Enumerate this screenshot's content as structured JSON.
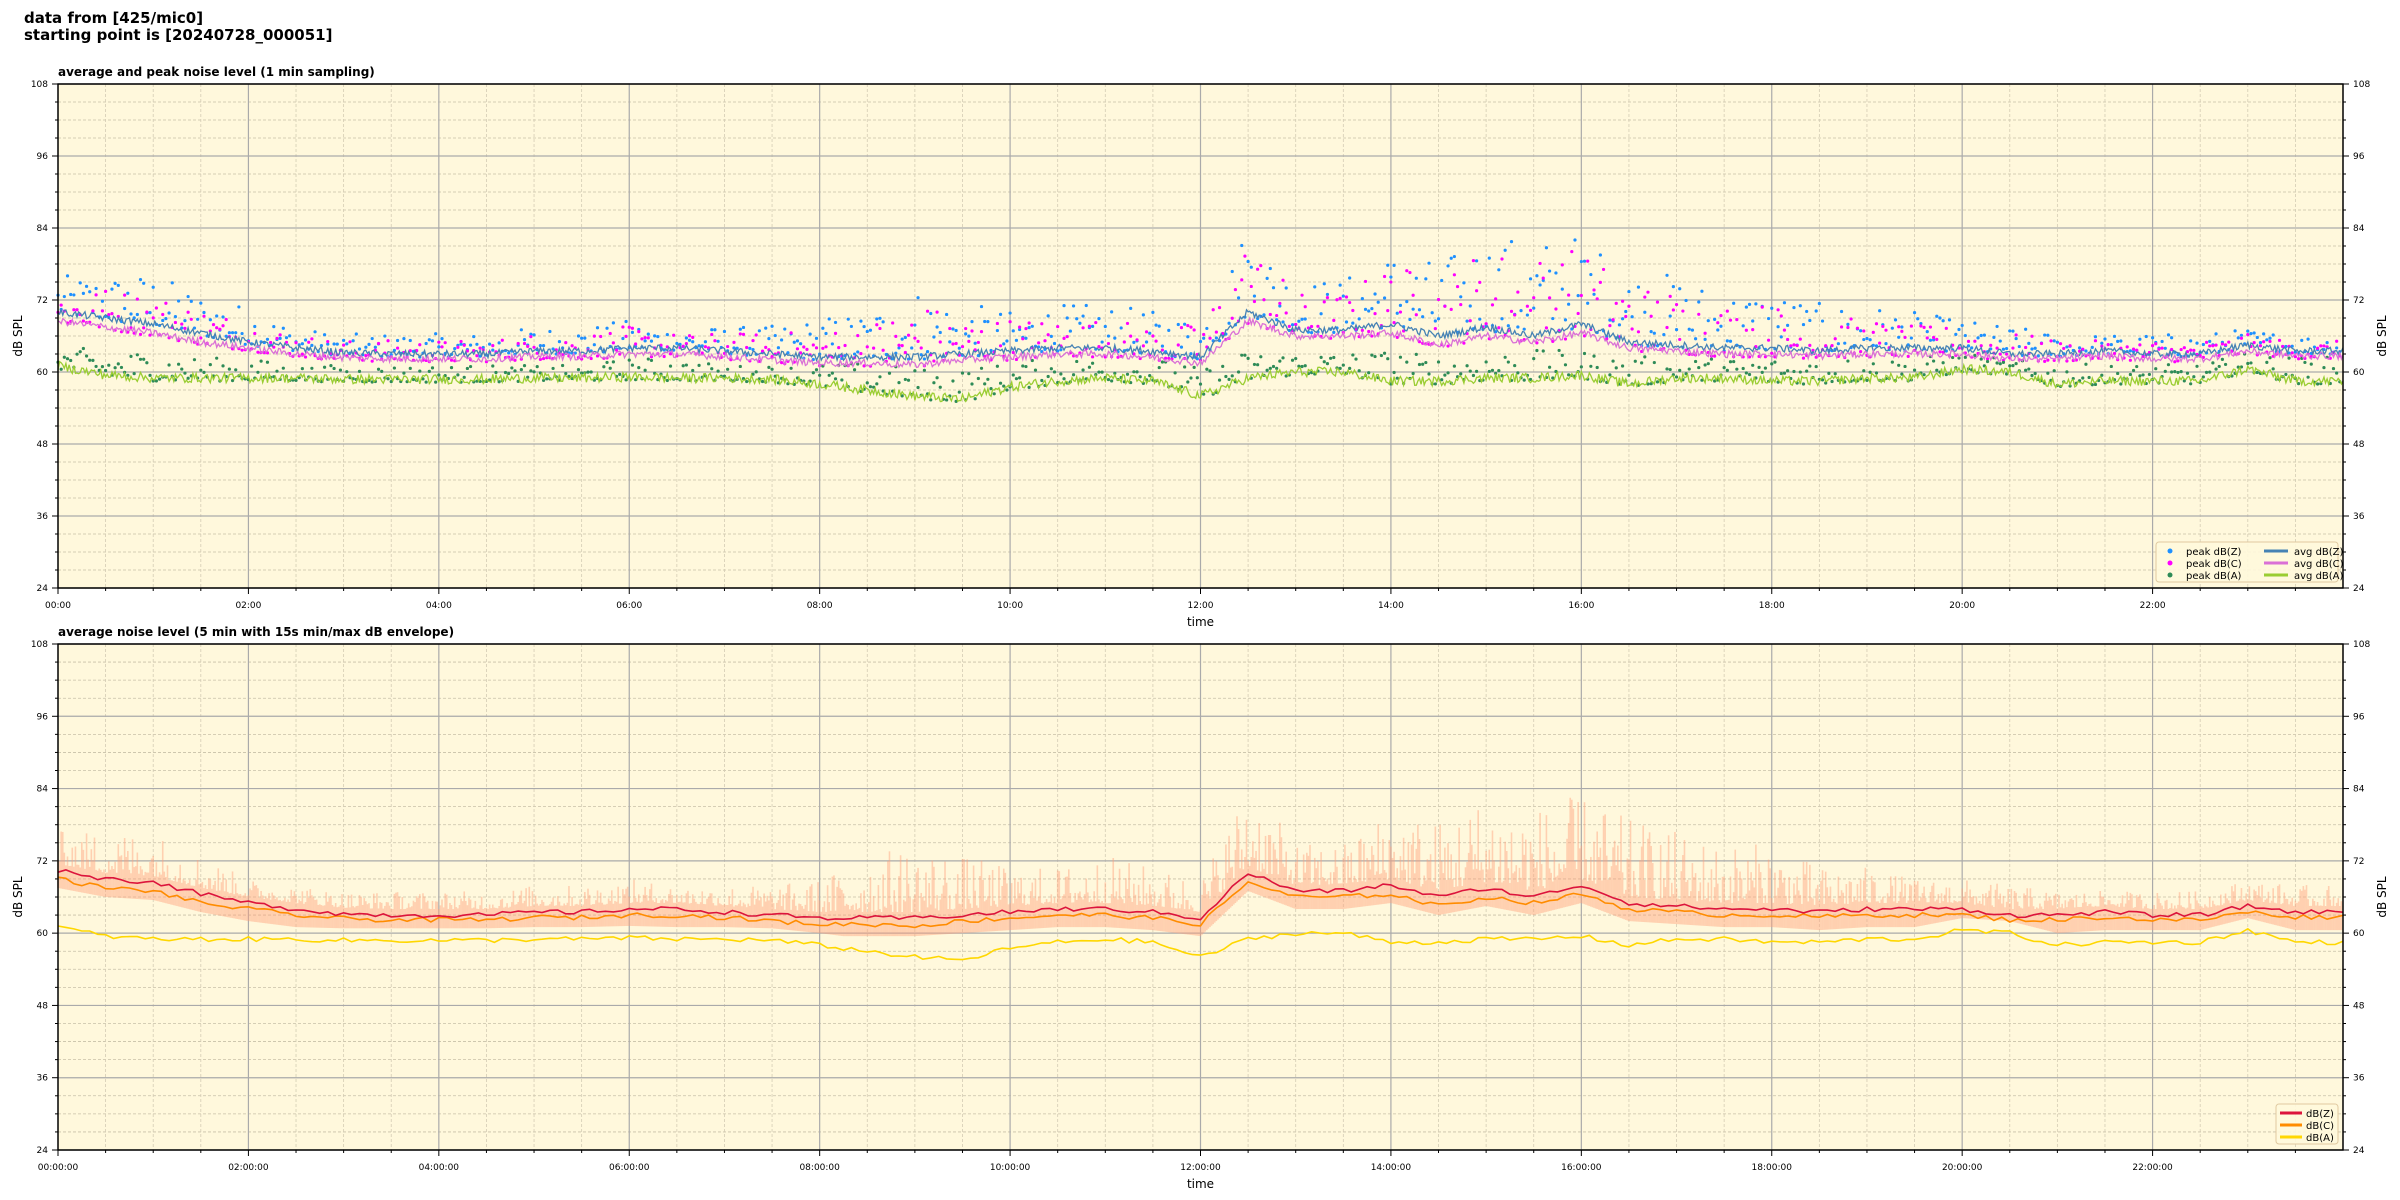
{
  "header": {
    "line1": "data from [425/mic0]",
    "line2": "starting point is [20240728_000051]"
  },
  "colors": {
    "background": "#fff8dc"
  },
  "chart_data": [
    {
      "type": "line+scatter",
      "title": "average and peak noise level (1 min sampling)",
      "xlabel": "time",
      "ylabel": "dB SPL",
      "ylim": [
        24,
        108
      ],
      "yticks": [
        24,
        36,
        48,
        60,
        72,
        84,
        96,
        108
      ],
      "xlim_hours": [
        0,
        24
      ],
      "xtick_labels": [
        "00:00",
        "02:00",
        "04:00",
        "06:00",
        "08:00",
        "10:00",
        "12:00",
        "14:00",
        "16:00",
        "18:00",
        "20:00",
        "22:00"
      ],
      "grid": true,
      "legend_position": "lower-right",
      "x_hours": [
        0,
        0.5,
        1,
        1.5,
        2,
        2.5,
        3,
        3.5,
        4,
        4.5,
        5,
        5.5,
        6,
        6.5,
        7,
        7.5,
        8,
        8.5,
        9,
        9.5,
        10,
        10.5,
        11,
        11.5,
        12,
        12.5,
        13,
        13.5,
        14,
        14.5,
        15,
        15.5,
        16,
        16.5,
        17,
        17.5,
        18,
        18.5,
        19,
        19.5,
        20,
        20.5,
        21,
        21.5,
        22,
        22.5,
        23,
        23.5,
        24
      ],
      "series": [
        {
          "name": "peak dB(Z)",
          "kind": "scatter",
          "color": "#1e90ff",
          "values": [
            75,
            75,
            75,
            72,
            70,
            67,
            66,
            66,
            66,
            66,
            67,
            67,
            68,
            67,
            67,
            67,
            68,
            69,
            72,
            70,
            69,
            70,
            70,
            69,
            68,
            82,
            74,
            74,
            78,
            76,
            80,
            79,
            80,
            75,
            74,
            72,
            72,
            70,
            70,
            69,
            68,
            67,
            66,
            66,
            66,
            66,
            67,
            66,
            66
          ]
        },
        {
          "name": "peak dB(C)",
          "kind": "scatter",
          "color": "#ff00ff",
          "values": [
            73,
            73,
            72,
            70,
            68,
            66,
            65,
            65,
            65,
            65,
            66,
            66,
            67,
            66,
            66,
            66,
            66,
            67,
            70,
            68,
            68,
            68,
            68,
            67,
            67,
            80,
            72,
            72,
            76,
            74,
            78,
            77,
            78,
            73,
            72,
            70,
            70,
            68,
            68,
            67,
            67,
            66,
            65,
            65,
            65,
            65,
            66,
            65,
            65
          ]
        },
        {
          "name": "peak dB(A)",
          "kind": "scatter",
          "color": "#2e8b57",
          "values": [
            64,
            63,
            63,
            62,
            62,
            61,
            61,
            61,
            61,
            61,
            61,
            61,
            62,
            62,
            61,
            61,
            61,
            61,
            60,
            60,
            61,
            62,
            62,
            62,
            60,
            63,
            63,
            63,
            63,
            62,
            63,
            63,
            63,
            62,
            62,
            62,
            62,
            62,
            62,
            62,
            63,
            62,
            61,
            61,
            61,
            61,
            63,
            62,
            62
          ]
        },
        {
          "name": "avg dB(Z)",
          "kind": "line",
          "color": "#4682b4",
          "values": [
            70,
            69,
            68,
            66.5,
            65,
            64,
            63.2,
            63,
            63,
            63,
            63.5,
            63.5,
            64,
            64,
            63.5,
            63,
            62.5,
            62.5,
            62.5,
            63,
            63.5,
            64,
            64,
            63.5,
            62.5,
            70,
            67,
            67,
            68,
            66,
            67.5,
            66,
            68,
            65,
            64.5,
            64,
            64,
            63.5,
            64,
            64,
            64,
            63,
            63,
            63.5,
            63,
            63,
            64.5,
            63.5,
            63.5
          ]
        },
        {
          "name": "avg dB(C)",
          "kind": "line",
          "color": "#da70d6",
          "values": [
            68.5,
            67.5,
            66.5,
            65,
            64,
            63,
            62.4,
            62.2,
            62.2,
            62.2,
            62.6,
            62.6,
            63,
            63,
            62.6,
            62,
            61.5,
            61.5,
            61.2,
            62,
            62.5,
            63,
            63,
            62.5,
            61.5,
            68.5,
            66,
            66,
            66.5,
            64.5,
            66,
            65,
            66.5,
            64,
            63.5,
            63,
            63,
            62.7,
            63,
            63,
            63,
            62.2,
            62.2,
            62.7,
            62.2,
            62.2,
            63.5,
            62.7,
            62.7
          ]
        },
        {
          "name": "avg dB(A)",
          "kind": "line",
          "color": "#9acd32",
          "values": [
            61,
            59.5,
            59,
            59,
            59,
            59,
            58.8,
            58.8,
            58.8,
            58.8,
            59,
            59,
            59.2,
            59,
            59,
            58.8,
            58,
            57,
            56,
            55.5,
            57.5,
            58.5,
            59,
            58.5,
            56,
            59,
            60,
            60,
            58.5,
            58.5,
            59,
            59,
            59.5,
            58,
            59,
            59,
            58.5,
            58.5,
            59,
            59,
            60.5,
            60,
            58,
            58.5,
            58.5,
            58.5,
            60.5,
            58.5,
            58.5
          ]
        }
      ]
    },
    {
      "type": "line+envelope",
      "title": "average noise level (5 min with 15s min/max dB envelope)",
      "xlabel": "time",
      "ylabel": "dB SPL",
      "ylim": [
        24,
        108
      ],
      "yticks": [
        24,
        36,
        48,
        60,
        72,
        84,
        96,
        108
      ],
      "xlim_hours": [
        0,
        24
      ],
      "xtick_labels": [
        "00:00:00",
        "02:00:00",
        "04:00:00",
        "06:00:00",
        "08:00:00",
        "10:00:00",
        "12:00:00",
        "14:00:00",
        "16:00:00",
        "18:00:00",
        "20:00:00",
        "22:00:00"
      ],
      "grid": true,
      "legend_position": "lower-right",
      "envelope_color": "#ffa07a",
      "envelope_max": [
        76,
        76,
        76,
        72,
        68,
        67,
        66,
        66,
        66,
        66,
        67,
        67,
        68,
        67,
        67,
        67,
        68,
        72,
        74,
        72,
        70,
        70,
        72,
        70,
        68,
        84,
        74,
        74,
        80,
        78,
        82,
        80,
        82,
        78,
        76,
        74,
        74,
        70,
        70,
        68,
        68,
        67,
        66,
        66,
        66,
        66,
        68,
        67,
        67
      ],
      "series": [
        {
          "name": "dB(Z)",
          "color": "#dc143c",
          "values": [
            70.5,
            69,
            68.5,
            66.5,
            65,
            64,
            63.2,
            63,
            63,
            63,
            63.5,
            63.5,
            64,
            64,
            63.5,
            63,
            62.5,
            62.5,
            62.5,
            63,
            63.5,
            64,
            64,
            63.5,
            62.5,
            70,
            67,
            67,
            68,
            66,
            67.5,
            66,
            68,
            65,
            64.5,
            64,
            64,
            63.5,
            64,
            64,
            64,
            63,
            63,
            63.5,
            63,
            63,
            64.5,
            63.5,
            63.5
          ]
        },
        {
          "name": "dB(C)",
          "color": "#ff8c00",
          "values": [
            69,
            67.5,
            67,
            65,
            64,
            63,
            62.4,
            62.2,
            62.2,
            62.2,
            62.6,
            62.6,
            63,
            63,
            62.6,
            62,
            61.5,
            61.5,
            61.2,
            62,
            62.5,
            63,
            63,
            62.5,
            61.5,
            68.5,
            66,
            66,
            66.5,
            64.5,
            66,
            65,
            66.5,
            64,
            63.5,
            63,
            63,
            62.7,
            63,
            63,
            63,
            62.2,
            62.2,
            62.7,
            62.2,
            62.2,
            63.5,
            62.7,
            62.7
          ]
        },
        {
          "name": "dB(A)",
          "color": "#ffd700",
          "values": [
            61,
            59.5,
            59,
            59,
            59,
            59,
            58.8,
            58.8,
            58.8,
            58.8,
            59,
            59,
            59.2,
            59,
            59,
            58.8,
            58,
            57,
            56,
            55.5,
            57.5,
            58.5,
            59,
            58.5,
            56,
            59,
            60,
            60,
            58.5,
            58.5,
            59,
            59,
            59.5,
            58,
            59,
            59,
            58.5,
            58.5,
            59,
            59,
            60.5,
            60,
            58,
            58.5,
            58.5,
            58.5,
            60.5,
            58.5,
            58.5
          ]
        }
      ]
    }
  ]
}
